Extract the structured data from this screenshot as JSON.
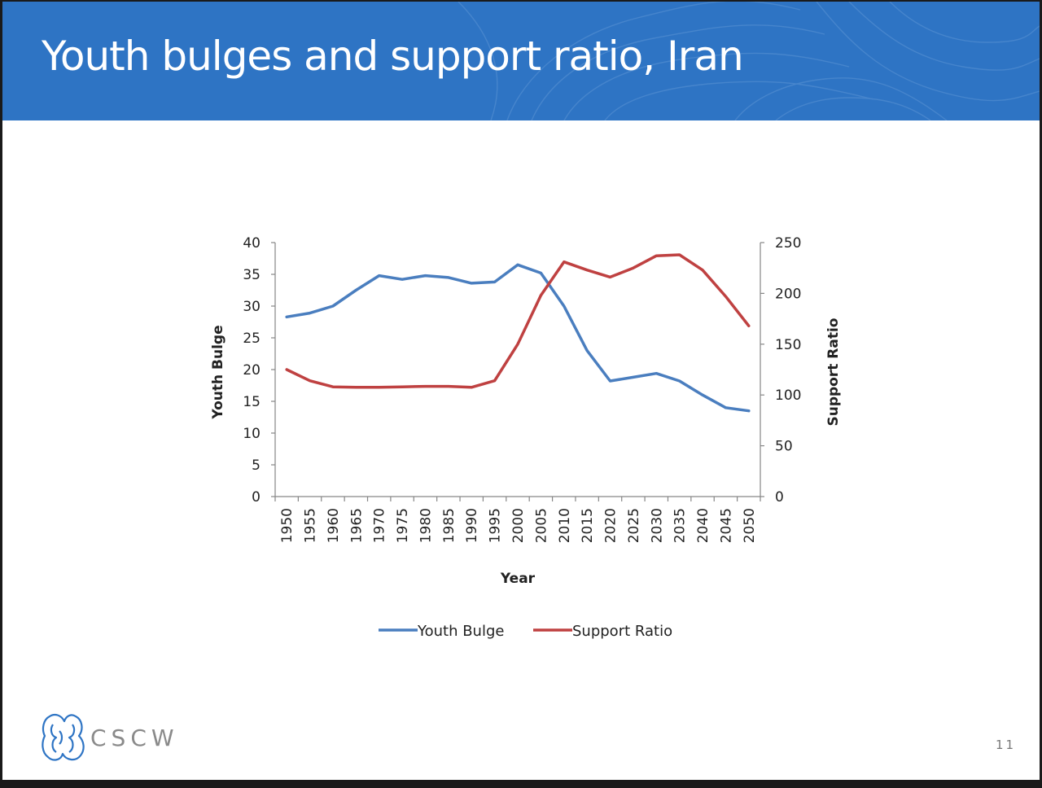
{
  "slide": {
    "title": "Youth bulges and support ratio, Iran",
    "page_number": "11",
    "logo_text": "CSCW"
  },
  "colors": {
    "title_bar": "#2e74c4",
    "youth_bulge": "#4a7ebf",
    "support_ratio": "#bf4141"
  },
  "chart_data": {
    "type": "line",
    "xlabel": "Year",
    "ylabel_left": "Youth Bulge",
    "ylabel_right": "Support Ratio",
    "x": [
      1950,
      1955,
      1960,
      1965,
      1970,
      1975,
      1980,
      1985,
      1990,
      1995,
      2000,
      2005,
      2010,
      2015,
      2020,
      2025,
      2030,
      2035,
      2040,
      2045,
      2050
    ],
    "ylim_left": [
      0,
      40
    ],
    "ylim_right": [
      0,
      250
    ],
    "yticks_left": [
      0,
      5,
      10,
      15,
      20,
      25,
      30,
      35,
      40
    ],
    "yticks_right": [
      0,
      50,
      100,
      150,
      200,
      250
    ],
    "legend_position": "bottom",
    "grid": false,
    "series": [
      {
        "name": "Youth Bulge",
        "axis": "left",
        "values": [
          28.3,
          28.9,
          30.0,
          32.5,
          34.8,
          34.2,
          34.8,
          34.5,
          33.6,
          33.8,
          36.5,
          35.2,
          30.0,
          23.0,
          18.2,
          18.8,
          19.4,
          18.2,
          16.0,
          14.0,
          13.5
        ]
      },
      {
        "name": "Support Ratio",
        "axis": "right",
        "values": [
          125,
          114,
          108,
          107.5,
          107.5,
          108,
          108.5,
          108.5,
          107.5,
          114,
          150,
          198,
          231,
          223,
          216,
          225,
          237,
          238,
          223,
          197,
          168
        ]
      }
    ]
  }
}
